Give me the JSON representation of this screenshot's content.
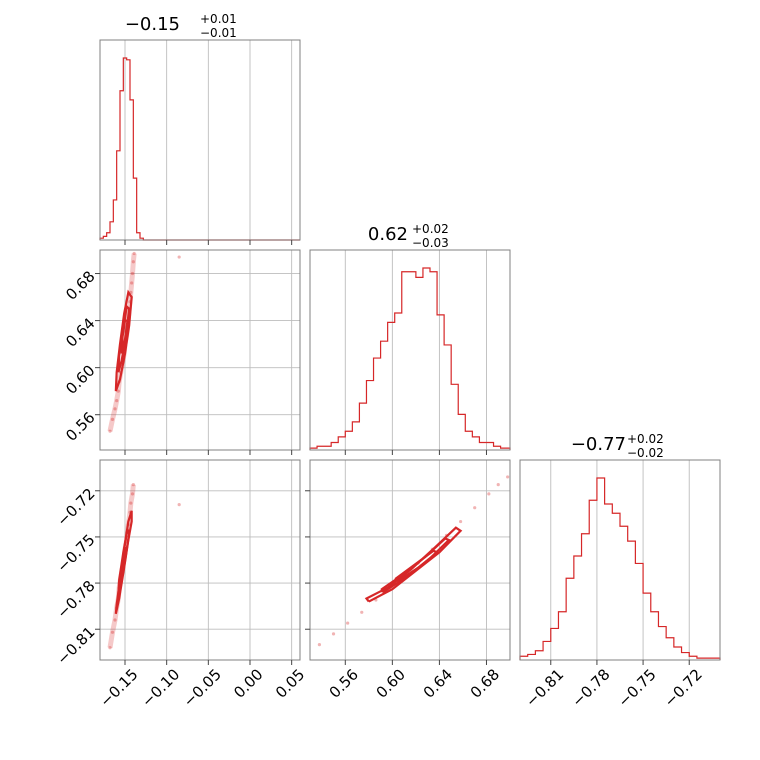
{
  "chart_data": {
    "type": "corner",
    "color": "#d62728",
    "grid": true,
    "parameters": [
      {
        "median": "−0.15",
        "plus": "+0.01",
        "minus": "−0.01",
        "range": [
          -0.18,
          0.06
        ],
        "ticks": [
          -0.15,
          -0.1,
          -0.05,
          0.0,
          0.05
        ],
        "tick_labels": [
          "−0.15",
          "−0.10",
          "−0.05",
          "0.00",
          "0.05"
        ]
      },
      {
        "median": "0.62",
        "plus": "+0.02",
        "minus": "−0.03",
        "range": [
          0.53,
          0.7
        ],
        "ticks": [
          0.56,
          0.6,
          0.64,
          0.68
        ],
        "tick_labels": [
          "0.56",
          "0.60",
          "0.64",
          "0.68"
        ]
      },
      {
        "median": "−0.77",
        "plus": "+0.02",
        "minus": "−0.02",
        "range": [
          -0.83,
          -0.7
        ],
        "ticks": [
          -0.81,
          -0.78,
          -0.75,
          -0.72
        ],
        "tick_labels": [
          "−0.81",
          "−0.78",
          "−0.75",
          "−0.72"
        ]
      }
    ],
    "histograms": [
      {
        "bins_x": [
          -0.18,
          -0.176,
          -0.172,
          -0.168,
          -0.164,
          -0.16,
          -0.156,
          -0.152,
          -0.148,
          -0.144,
          -0.14,
          -0.136,
          -0.132,
          -0.128,
          -0.124,
          -0.12,
          -0.1,
          -0.05,
          0.0,
          0.06
        ],
        "counts": [
          1,
          2,
          4,
          10,
          22,
          49,
          82,
          100,
          99,
          77,
          34,
          4,
          1,
          0,
          0,
          0,
          0,
          0,
          0,
          0
        ]
      },
      {
        "bins_x": [
          0.53,
          0.536,
          0.542,
          0.548,
          0.554,
          0.56,
          0.566,
          0.572,
          0.578,
          0.584,
          0.59,
          0.596,
          0.602,
          0.608,
          0.614,
          0.62,
          0.626,
          0.632,
          0.638,
          0.644,
          0.65,
          0.656,
          0.662,
          0.668,
          0.674,
          0.68,
          0.686,
          0.692,
          0.7
        ],
        "counts": [
          1,
          2,
          2,
          4,
          7,
          10,
          15,
          25,
          37,
          49,
          58,
          68,
          73,
          95,
          95,
          92,
          97,
          95,
          72,
          56,
          35,
          19,
          10,
          7,
          4,
          4,
          2,
          1
        ]
      },
      {
        "bins_x": [
          -0.83,
          -0.825,
          -0.82,
          -0.815,
          -0.81,
          -0.805,
          -0.8,
          -0.795,
          -0.79,
          -0.785,
          -0.78,
          -0.775,
          -0.77,
          -0.765,
          -0.76,
          -0.755,
          -0.75,
          -0.745,
          -0.74,
          -0.735,
          -0.73,
          -0.725,
          -0.72,
          -0.715,
          -0.71,
          -0.7
        ],
        "counts": [
          2,
          3,
          5,
          10,
          17,
          26,
          44,
          56,
          68,
          86,
          98,
          84,
          79,
          72,
          64,
          52,
          36,
          26,
          18,
          12,
          7,
          4,
          2,
          1,
          1
        ]
      }
    ],
    "pair_samples": [
      {
        "x_param": 0,
        "y_param": 1,
        "points": [
          [
            -0.168,
            0.546
          ],
          [
            -0.165,
            0.556
          ],
          [
            -0.162,
            0.565
          ],
          [
            -0.16,
            0.572
          ],
          [
            -0.158,
            0.58
          ],
          [
            -0.157,
            0.588
          ],
          [
            -0.155,
            0.596
          ],
          [
            -0.153,
            0.604
          ],
          [
            -0.151,
            0.612
          ],
          [
            -0.15,
            0.62
          ],
          [
            -0.148,
            0.628
          ],
          [
            -0.147,
            0.634
          ],
          [
            -0.146,
            0.642
          ],
          [
            -0.145,
            0.65
          ],
          [
            -0.144,
            0.656
          ],
          [
            -0.143,
            0.664
          ],
          [
            -0.142,
            0.672
          ],
          [
            -0.141,
            0.68
          ],
          [
            -0.14,
            0.69
          ],
          [
            -0.139,
            0.697
          ],
          [
            -0.085,
            0.694
          ]
        ]
      },
      {
        "x_param": 0,
        "y_param": 2,
        "points": [
          [
            -0.168,
            -0.822
          ],
          [
            -0.165,
            -0.812
          ],
          [
            -0.162,
            -0.804
          ],
          [
            -0.16,
            -0.796
          ],
          [
            -0.158,
            -0.79
          ],
          [
            -0.157,
            -0.783
          ],
          [
            -0.155,
            -0.776
          ],
          [
            -0.153,
            -0.77
          ],
          [
            -0.151,
            -0.764
          ],
          [
            -0.15,
            -0.758
          ],
          [
            -0.148,
            -0.752
          ],
          [
            -0.147,
            -0.747
          ],
          [
            -0.146,
            -0.742
          ],
          [
            -0.144,
            -0.734
          ],
          [
            -0.143,
            -0.728
          ],
          [
            -0.141,
            -0.722
          ],
          [
            -0.14,
            -0.716
          ],
          [
            -0.085,
            -0.729
          ]
        ]
      },
      {
        "x_param": 1,
        "y_param": 2,
        "points": [
          [
            0.538,
            -0.82
          ],
          [
            0.55,
            -0.813
          ],
          [
            0.562,
            -0.806
          ],
          [
            0.574,
            -0.799
          ],
          [
            0.586,
            -0.791
          ],
          [
            0.598,
            -0.783
          ],
          [
            0.61,
            -0.775
          ],
          [
            0.622,
            -0.767
          ],
          [
            0.634,
            -0.758
          ],
          [
            0.646,
            -0.749
          ],
          [
            0.658,
            -0.74
          ],
          [
            0.67,
            -0.731
          ],
          [
            0.682,
            -0.722
          ],
          [
            0.69,
            -0.716
          ],
          [
            0.698,
            -0.711
          ]
        ]
      }
    ],
    "pair_contours": [
      {
        "x_param": 0,
        "y_param": 1,
        "levels": [
          [
            [
              -0.161,
              0.58
            ],
            [
              -0.156,
              0.59
            ],
            [
              -0.15,
              0.612
            ],
            [
              -0.145,
              0.636
            ],
            [
              -0.142,
              0.66
            ],
            [
              -0.146,
              0.664
            ],
            [
              -0.151,
              0.646
            ],
            [
              -0.156,
              0.62
            ],
            [
              -0.16,
              0.596
            ],
            [
              -0.161,
              0.58
            ]
          ],
          [
            [
              -0.158,
              0.596
            ],
            [
              -0.154,
              0.606
            ],
            [
              -0.149,
              0.626
            ],
            [
              -0.145,
              0.65
            ],
            [
              -0.148,
              0.652
            ],
            [
              -0.152,
              0.632
            ],
            [
              -0.157,
              0.61
            ],
            [
              -0.158,
              0.596
            ]
          ],
          [
            [
              -0.154,
              0.612
            ],
            [
              -0.15,
              0.624
            ],
            [
              -0.147,
              0.64
            ],
            [
              -0.15,
              0.64
            ],
            [
              -0.153,
              0.626
            ],
            [
              -0.154,
              0.612
            ]
          ]
        ]
      },
      {
        "x_param": 0,
        "y_param": 2,
        "levels": [
          [
            [
              -0.161,
              -0.8
            ],
            [
              -0.157,
              -0.79
            ],
            [
              -0.151,
              -0.77
            ],
            [
              -0.146,
              -0.752
            ],
            [
              -0.142,
              -0.74
            ],
            [
              -0.142,
              -0.733
            ],
            [
              -0.146,
              -0.74
            ],
            [
              -0.151,
              -0.758
            ],
            [
              -0.156,
              -0.778
            ],
            [
              -0.16,
              -0.794
            ],
            [
              -0.161,
              -0.8
            ]
          ],
          [
            [
              -0.158,
              -0.788
            ],
            [
              -0.154,
              -0.778
            ],
            [
              -0.149,
              -0.762
            ],
            [
              -0.145,
              -0.748
            ],
            [
              -0.147,
              -0.745
            ],
            [
              -0.152,
              -0.76
            ],
            [
              -0.157,
              -0.778
            ],
            [
              -0.158,
              -0.788
            ]
          ],
          [
            [
              -0.155,
              -0.778
            ],
            [
              -0.151,
              -0.768
            ],
            [
              -0.148,
              -0.758
            ],
            [
              -0.15,
              -0.757
            ],
            [
              -0.153,
              -0.767
            ],
            [
              -0.155,
              -0.778
            ]
          ]
        ]
      },
      {
        "x_param": 1,
        "y_param": 2,
        "levels": [
          [
            [
              0.58,
              -0.792
            ],
            [
              0.6,
              -0.784
            ],
            [
              0.62,
              -0.772
            ],
            [
              0.64,
              -0.76
            ],
            [
              0.658,
              -0.746
            ],
            [
              0.654,
              -0.744
            ],
            [
              0.636,
              -0.757
            ],
            [
              0.616,
              -0.771
            ],
            [
              0.596,
              -0.783
            ],
            [
              0.578,
              -0.79
            ],
            [
              0.58,
              -0.792
            ]
          ],
          [
            [
              0.592,
              -0.786
            ],
            [
              0.612,
              -0.776
            ],
            [
              0.632,
              -0.764
            ],
            [
              0.648,
              -0.752
            ],
            [
              0.645,
              -0.751
            ],
            [
              0.628,
              -0.763
            ],
            [
              0.608,
              -0.775
            ],
            [
              0.591,
              -0.784
            ],
            [
              0.592,
              -0.786
            ]
          ],
          [
            [
              0.604,
              -0.779
            ],
            [
              0.622,
              -0.77
            ],
            [
              0.638,
              -0.76
            ],
            [
              0.635,
              -0.759
            ],
            [
              0.619,
              -0.768
            ],
            [
              0.603,
              -0.777
            ],
            [
              0.604,
              -0.779
            ]
          ]
        ]
      }
    ]
  }
}
